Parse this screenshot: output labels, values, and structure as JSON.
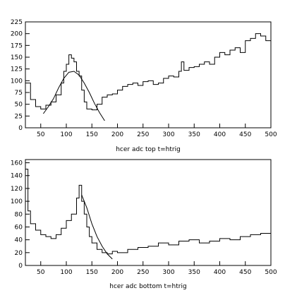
{
  "chart_data": [
    {
      "type": "histogram",
      "title": "hcer adc top   t=htrig",
      "xlim": [
        20,
        500
      ],
      "ylim": [
        0,
        225
      ],
      "xticks": [
        50,
        100,
        150,
        200,
        250,
        300,
        350,
        400,
        450,
        500
      ],
      "yticks": [
        0,
        25,
        50,
        75,
        100,
        125,
        150,
        175,
        200,
        225
      ],
      "histogram": {
        "x": [
          20,
          30,
          40,
          50,
          60,
          70,
          80,
          90,
          95,
          100,
          105,
          110,
          115,
          120,
          125,
          130,
          135,
          140,
          150,
          160,
          170,
          180,
          190,
          200,
          210,
          220,
          230,
          240,
          250,
          260,
          270,
          280,
          290,
          300,
          310,
          320,
          325,
          330,
          340,
          350,
          360,
          370,
          380,
          390,
          400,
          410,
          420,
          430,
          440,
          450,
          460,
          470,
          480,
          490,
          500
        ],
        "y": [
          95,
          60,
          45,
          40,
          48,
          55,
          70,
          95,
          120,
          135,
          155,
          148,
          140,
          120,
          110,
          80,
          55,
          40,
          38,
          50,
          65,
          70,
          72,
          80,
          88,
          92,
          95,
          90,
          98,
          100,
          92,
          95,
          105,
          110,
          108,
          120,
          140,
          122,
          128,
          130,
          135,
          140,
          135,
          150,
          160,
          155,
          165,
          170,
          160,
          185,
          190,
          200,
          195,
          185,
          180
        ]
      },
      "fit": {
        "x": [
          55,
          65,
          75,
          85,
          95,
          105,
          115,
          125,
          135,
          145,
          155,
          165,
          175
        ],
        "y": [
          30,
          45,
          62,
          85,
          105,
          118,
          120,
          112,
          95,
          75,
          52,
          32,
          15
        ]
      }
    },
    {
      "type": "histogram",
      "title": "hcer adc bottom  t=htrig",
      "xlim": [
        20,
        500
      ],
      "ylim": [
        0,
        165
      ],
      "xticks": [
        50,
        100,
        150,
        200,
        250,
        300,
        350,
        400,
        450,
        500
      ],
      "yticks": [
        0,
        20,
        40,
        60,
        80,
        100,
        120,
        140,
        160
      ],
      "histogram": {
        "x": [
          20,
          25,
          30,
          40,
          50,
          60,
          70,
          80,
          90,
          100,
          110,
          120,
          125,
          130,
          135,
          140,
          145,
          150,
          160,
          170,
          180,
          190,
          200,
          220,
          240,
          260,
          280,
          300,
          320,
          340,
          360,
          380,
          400,
          420,
          440,
          460,
          480,
          500
        ],
        "y": [
          150,
          85,
          65,
          55,
          48,
          45,
          42,
          48,
          58,
          70,
          80,
          105,
          125,
          100,
          80,
          60,
          45,
          35,
          25,
          20,
          18,
          22,
          20,
          25,
          28,
          30,
          35,
          32,
          38,
          40,
          35,
          38,
          42,
          40,
          45,
          48,
          50,
          55
        ]
      },
      "fit": {
        "x": [
          130,
          140,
          150,
          160,
          170,
          180,
          190
        ],
        "y": [
          110,
          90,
          65,
          45,
          30,
          18,
          10
        ]
      }
    }
  ]
}
